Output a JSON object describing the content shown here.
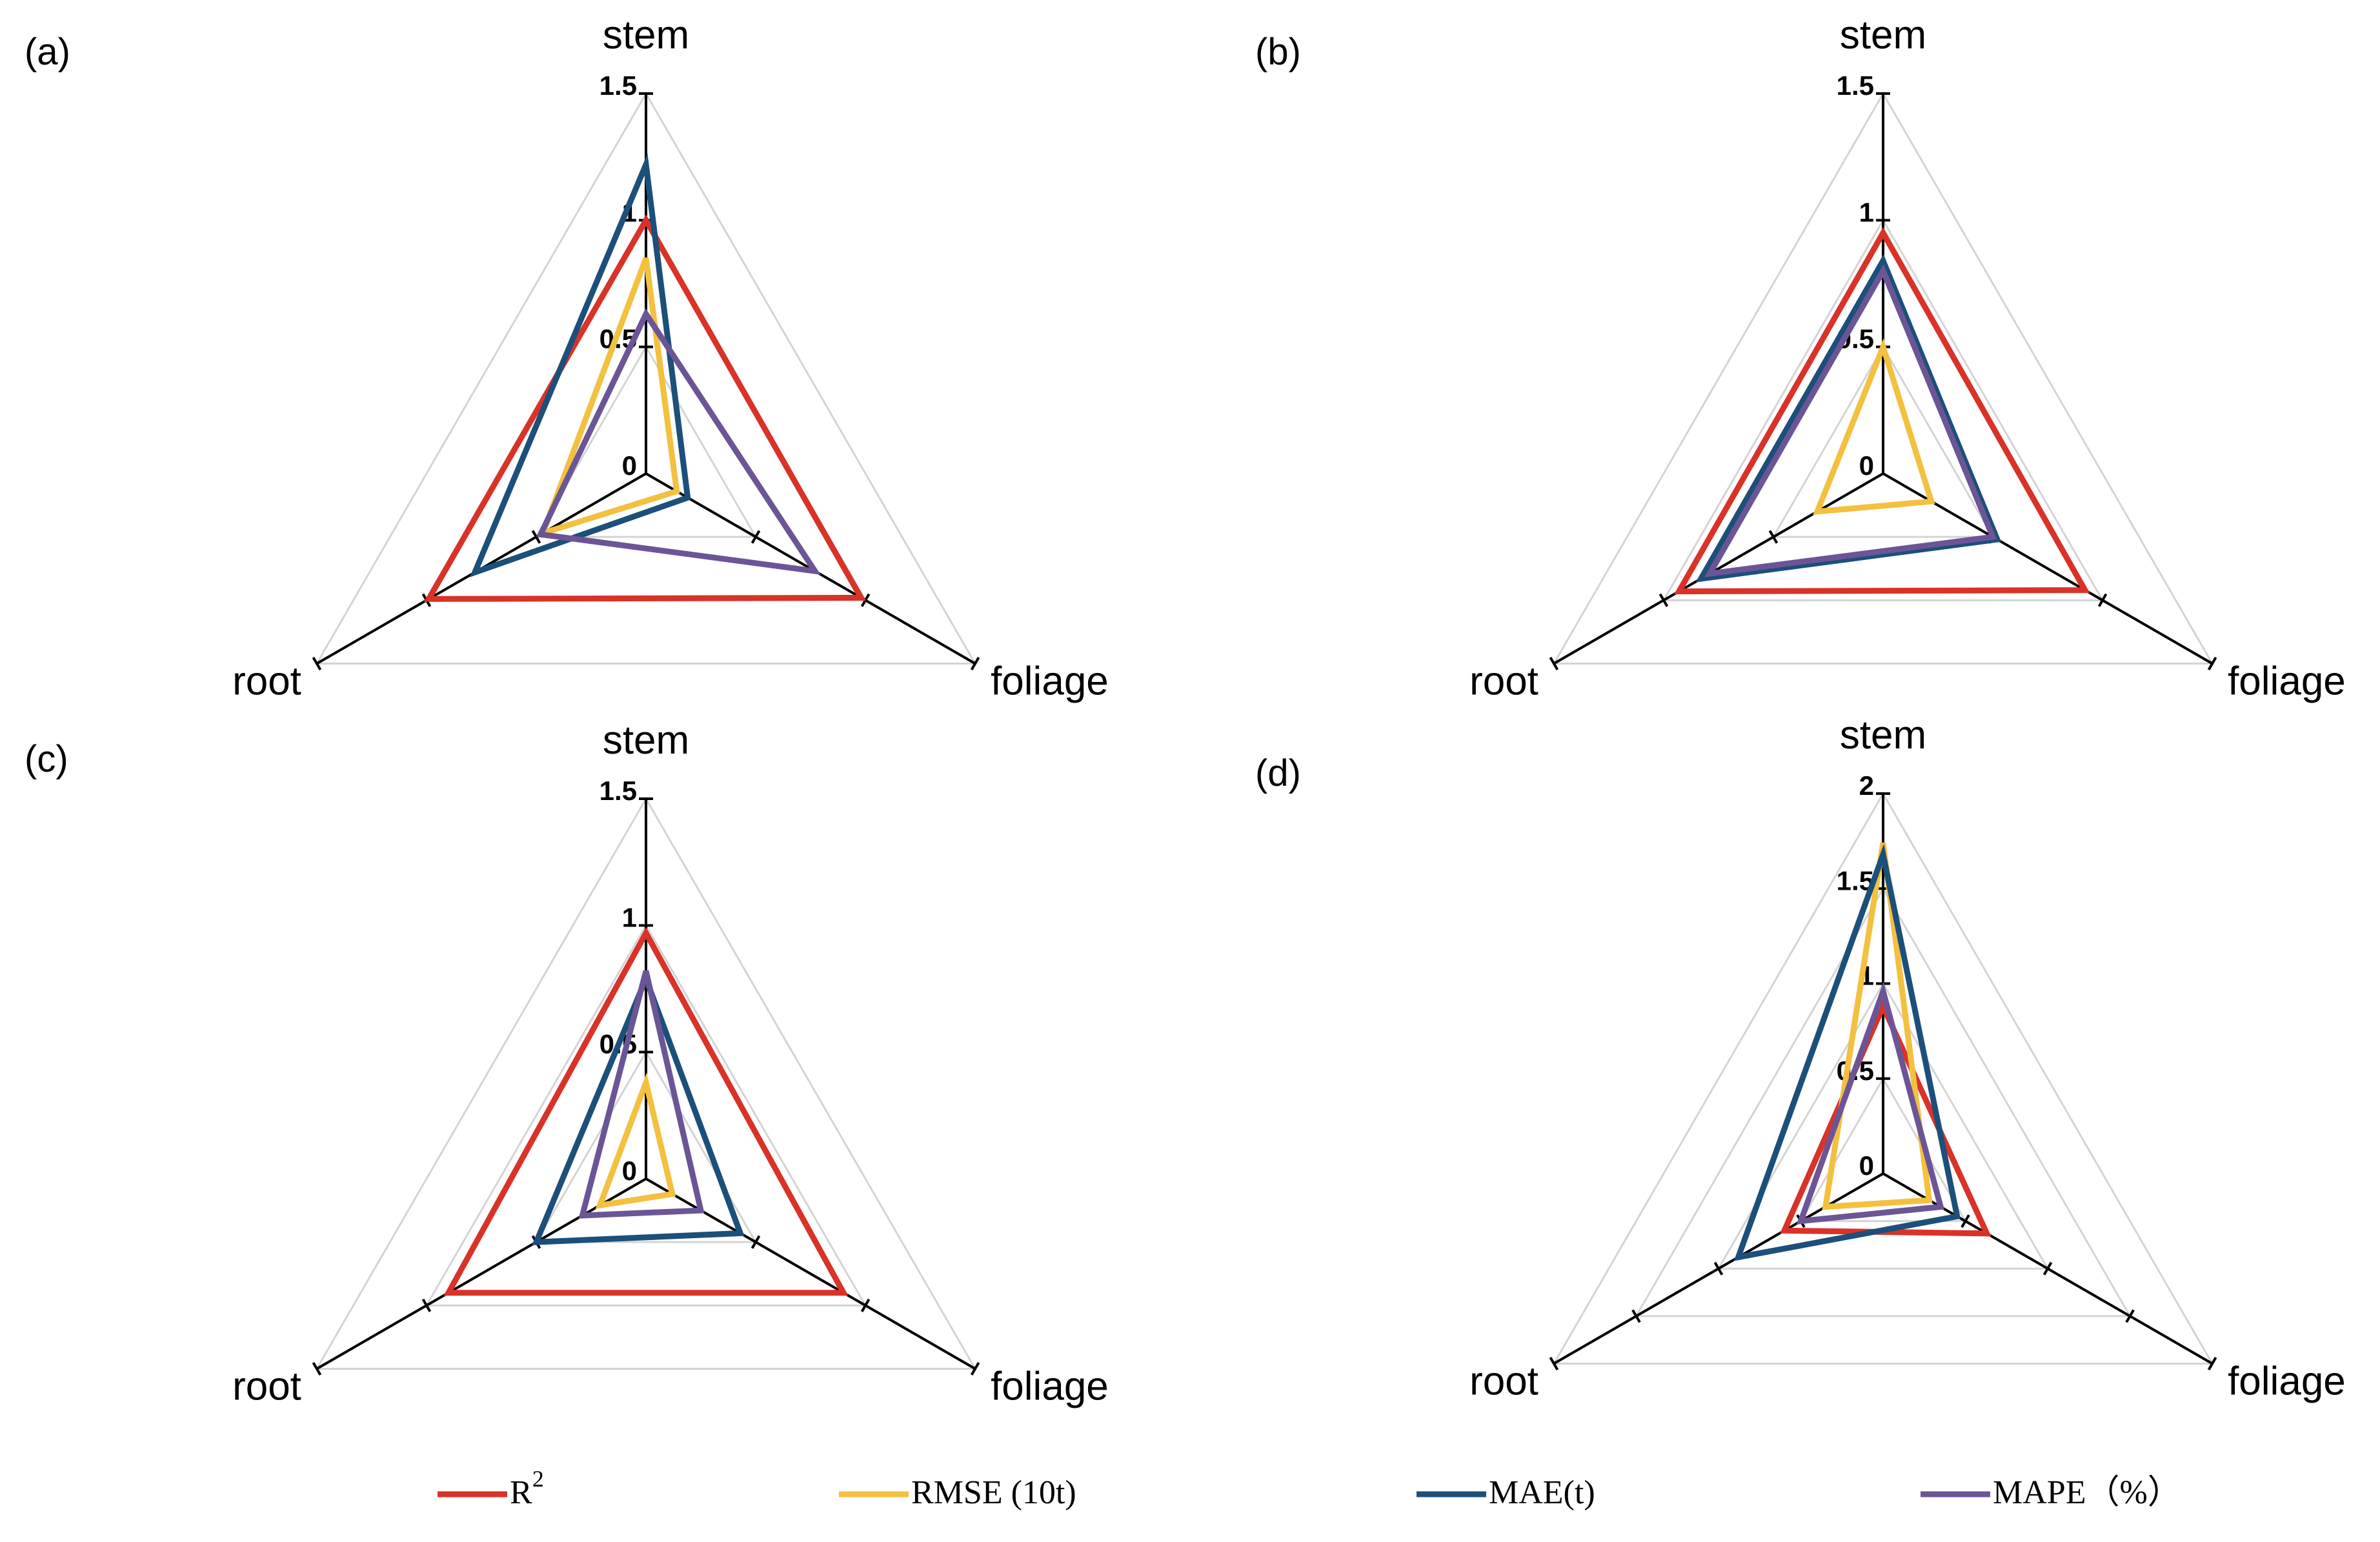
{
  "chart_data": [
    {
      "type": "radar",
      "panel": "(a)",
      "axes": [
        "stem",
        "foliage",
        "root"
      ],
      "rmax": 1.5,
      "ticks": [
        "0",
        "0.5",
        "1",
        "1.5"
      ],
      "tick_values": [
        0,
        0.5,
        1,
        1.5
      ],
      "series": [
        {
          "name": "R2",
          "values": [
            1.0,
            0.98,
            0.99
          ]
        },
        {
          "name": "RMSE",
          "values": [
            0.85,
            0.14,
            0.47
          ]
        },
        {
          "name": "MAE",
          "values": [
            1.22,
            0.19,
            0.78
          ]
        },
        {
          "name": "MAPE",
          "values": [
            0.63,
            0.77,
            0.48
          ]
        }
      ]
    },
    {
      "type": "radar",
      "panel": "(b)",
      "axes": [
        "stem",
        "foliage",
        "root"
      ],
      "rmax": 1.5,
      "ticks": [
        "0",
        "0.5",
        "1",
        "1.5"
      ],
      "tick_values": [
        0,
        0.5,
        1,
        1.5
      ],
      "series": [
        {
          "name": "R2",
          "values": [
            0.95,
            0.92,
            0.93
          ]
        },
        {
          "name": "RMSE",
          "values": [
            0.5,
            0.22,
            0.3
          ]
        },
        {
          "name": "MAE",
          "values": [
            0.84,
            0.52,
            0.83
          ]
        },
        {
          "name": "MAPE",
          "values": [
            0.8,
            0.5,
            0.79
          ]
        }
      ]
    },
    {
      "type": "radar",
      "panel": "(c)",
      "axes": [
        "stem",
        "foliage",
        "root"
      ],
      "rmax": 1.5,
      "ticks": [
        "0",
        "0.5",
        "1",
        "1.5"
      ],
      "tick_values": [
        0,
        0.5,
        1,
        1.5
      ],
      "series": [
        {
          "name": "R2",
          "values": [
            0.97,
            0.9,
            0.9
          ]
        },
        {
          "name": "RMSE",
          "values": [
            0.38,
            0.12,
            0.21
          ]
        },
        {
          "name": "MAE",
          "values": [
            0.79,
            0.43,
            0.5
          ]
        },
        {
          "name": "MAPE",
          "values": [
            0.82,
            0.25,
            0.29
          ]
        }
      ]
    },
    {
      "type": "radar",
      "panel": "(d)",
      "axes": [
        "stem",
        "foliage",
        "root"
      ],
      "rmax": 2.0,
      "ticks": [
        "0",
        "0.5",
        "1",
        "1.5",
        "2"
      ],
      "tick_values": [
        0,
        0.5,
        1,
        1.5,
        2
      ],
      "series": [
        {
          "name": "R2",
          "values": [
            0.88,
            0.63,
            0.6
          ]
        },
        {
          "name": "RMSE",
          "values": [
            1.74,
            0.28,
            0.35
          ]
        },
        {
          "name": "MAE",
          "values": [
            1.68,
            0.45,
            0.88
          ]
        },
        {
          "name": "MAPE",
          "values": [
            0.96,
            0.35,
            0.5
          ]
        }
      ]
    }
  ],
  "legend": [
    {
      "key": "R2",
      "label_main": "R",
      "label_sup": "2",
      "color": "#d93228"
    },
    {
      "key": "RMSE",
      "label_main": "RMSE (10t)",
      "label_sup": "",
      "color": "#f3c03f"
    },
    {
      "key": "MAE",
      "label_main": "MAE(t)",
      "label_sup": "",
      "color": "#1c4f7a"
    },
    {
      "key": "MAPE",
      "label_main": "MAPE（%）",
      "label_sup": "",
      "color": "#6b5596"
    }
  ],
  "colors": {
    "axis": "#000000",
    "grid": "#d4d4d4"
  }
}
